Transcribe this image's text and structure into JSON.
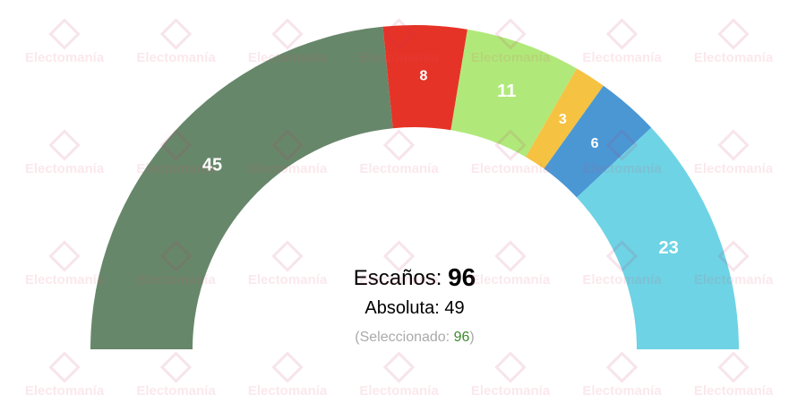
{
  "chart_data": {
    "type": "semicircle",
    "values": [
      45,
      8,
      11,
      3,
      6,
      23
    ],
    "colors": [
      "#67876a",
      "#e63327",
      "#b0e97a",
      "#f5c242",
      "#4a97d4",
      "#6ed3e4"
    ],
    "seats_label": "Escaños:",
    "total": 96,
    "majority_label": "Absoluta:",
    "majority": 49,
    "selected_open": "(Seleccionado:",
    "selected": 96,
    "selected_close": ")",
    "watermark": "Electomanía"
  }
}
